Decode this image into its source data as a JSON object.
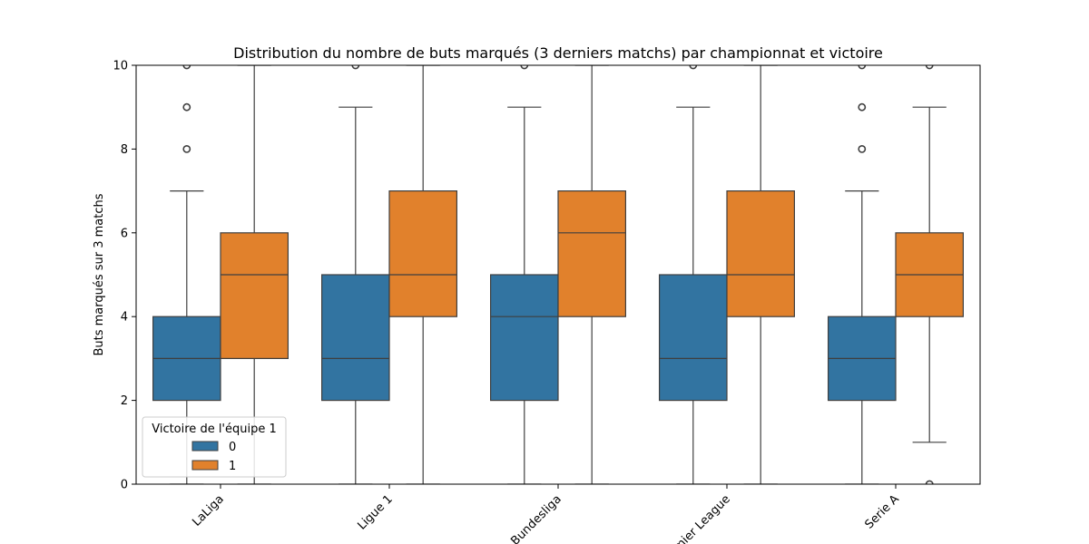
{
  "chart_data": {
    "type": "box",
    "title": "Distribution du nombre de buts marqués (3 derniers matchs) par championnat et victoire",
    "xlabel": "",
    "ylabel": "Buts marqués sur 3 matchs",
    "ylim": [
      0,
      10
    ],
    "yticks": [
      0,
      2,
      4,
      6,
      8,
      10
    ],
    "categories": [
      "LaLiga",
      "Ligue 1",
      "Bundesliga",
      "Premier League",
      "Serie A"
    ],
    "legend": {
      "title": "Victoire de l'équipe 1",
      "placement": "lower-left"
    },
    "series": [
      {
        "name": "0",
        "color": "#3274a1",
        "boxes": [
          {
            "min": 0,
            "q1": 2,
            "median": 3,
            "q3": 4,
            "max": 7,
            "outliers": [
              8,
              9,
              10
            ]
          },
          {
            "min": 0,
            "q1": 2,
            "median": 3,
            "q3": 5,
            "max": 9,
            "outliers": [
              10
            ]
          },
          {
            "min": 0,
            "q1": 2,
            "median": 4,
            "q3": 5,
            "max": 9,
            "outliers": [
              10
            ]
          },
          {
            "min": 0,
            "q1": 2,
            "median": 3,
            "q3": 5,
            "max": 9,
            "outliers": [
              10
            ]
          },
          {
            "min": 0,
            "q1": 2,
            "median": 3,
            "q3": 4,
            "max": 7,
            "outliers": [
              8,
              9,
              10
            ]
          }
        ]
      },
      {
        "name": "1",
        "color": "#e1812c",
        "boxes": [
          {
            "min": 0,
            "q1": 3,
            "median": 5,
            "q3": 6,
            "max": 10,
            "outliers": []
          },
          {
            "min": 0,
            "q1": 4,
            "median": 5,
            "q3": 7,
            "max": 10,
            "outliers": []
          },
          {
            "min": 0,
            "q1": 4,
            "median": 6,
            "q3": 7,
            "max": 10,
            "outliers": []
          },
          {
            "min": 0,
            "q1": 4,
            "median": 5,
            "q3": 7,
            "max": 10,
            "outliers": []
          },
          {
            "min": 1,
            "q1": 4,
            "median": 5,
            "q3": 6,
            "max": 9,
            "outliers": [
              0,
              10
            ]
          }
        ]
      }
    ]
  }
}
